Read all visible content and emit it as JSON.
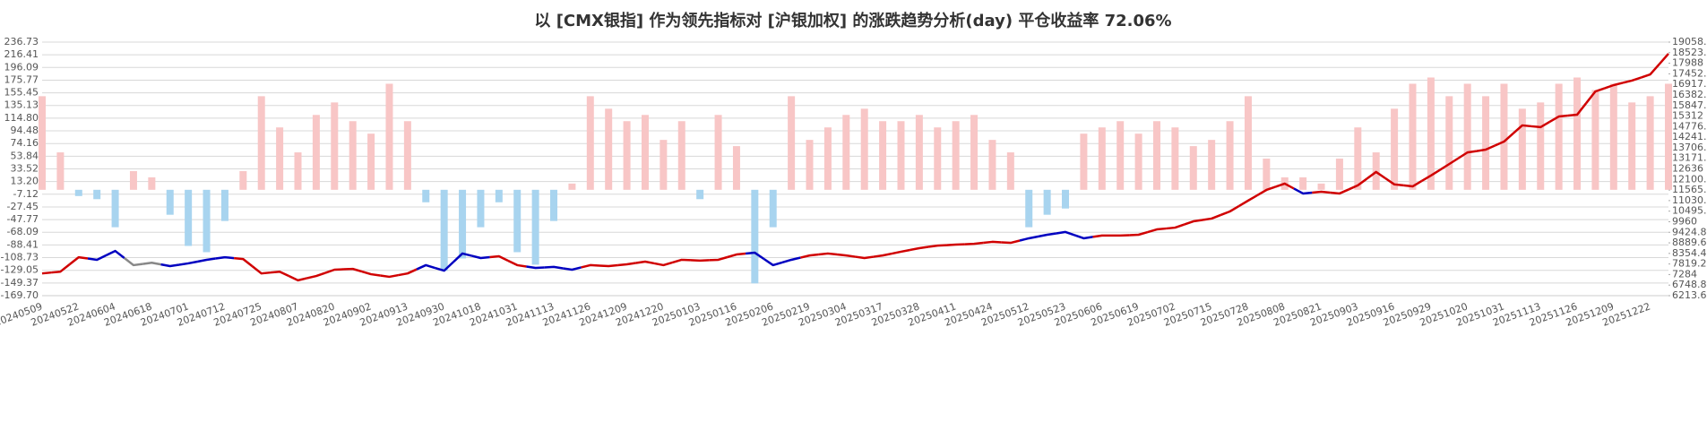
{
  "chart_data": {
    "type": "combo",
    "title": "以 [CMX银指] 作为领先指标对 [沪银加权] 的涨跌趋势分析(day) 平仓收益率 72.06%",
    "categories": [
      "20240509",
      null,
      "20240522",
      null,
      "20240604",
      null,
      "20240618",
      null,
      "20240701",
      null,
      "20240712",
      null,
      "20240725",
      null,
      "20240807",
      null,
      "20240820",
      null,
      "20240902",
      null,
      "20240913",
      null,
      "20240930",
      null,
      "20241018",
      null,
      "20241031",
      null,
      "20241113",
      null,
      "20241126",
      null,
      "20241209",
      null,
      "20241220",
      null,
      "20250103",
      null,
      "20250116",
      null,
      "20250206",
      null,
      "20250219",
      null,
      "20250304",
      null,
      "20250317",
      null,
      "20250328",
      null,
      "20250411",
      null,
      "20250424",
      null,
      "20250512",
      null,
      "20250523",
      null,
      "20250606",
      null,
      "20250619",
      null,
      "20250702",
      null,
      "20250715",
      null,
      "20250728",
      null,
      "20250808",
      null,
      "20250821",
      null,
      "20250903",
      null,
      "20250916",
      null,
      "20250929",
      null,
      "20251020",
      null,
      "20251031",
      null,
      "20251113",
      null,
      "20251126",
      null,
      "20251209",
      null,
      "20251222",
      null
    ],
    "series": [
      {
        "type": "bar",
        "positive_color": "#f8c6c6",
        "negative_color": "#a8d4ef",
        "values": [
          150,
          60,
          -10,
          -15,
          -60,
          30,
          20,
          -40,
          -90,
          -100,
          -50,
          30,
          150,
          100,
          60,
          120,
          140,
          110,
          90,
          170,
          110,
          -20,
          -130,
          -110,
          -60,
          -20,
          -100,
          -120,
          -50,
          10,
          150,
          130,
          110,
          120,
          80,
          110,
          -15,
          120,
          70,
          -150,
          -60,
          150,
          80,
          100,
          120,
          130,
          110,
          110,
          120,
          100,
          110,
          120,
          80,
          60,
          -60,
          -40,
          -30,
          90,
          100,
          110,
          90,
          110,
          100,
          70,
          80,
          110,
          150,
          50,
          20,
          20,
          10,
          50,
          100,
          60,
          130,
          170,
          180,
          150,
          170,
          150,
          170,
          130,
          140,
          170,
          180,
          160,
          170,
          140,
          150,
          170
        ]
      },
      {
        "type": "line",
        "axis": "y2",
        "values": [
          7340,
          7430,
          8160,
          8030,
          8480,
          7760,
          7880,
          7710,
          7850,
          8030,
          8160,
          8070,
          7340,
          7430,
          6990,
          7210,
          7530,
          7570,
          7300,
          7170,
          7340,
          7760,
          7480,
          8350,
          8120,
          8210,
          7760,
          7620,
          7670,
          7530,
          7760,
          7710,
          7800,
          7940,
          7760,
          8030,
          7990,
          8030,
          8300,
          8390,
          7760,
          8030,
          8250,
          8350,
          8250,
          8120,
          8250,
          8440,
          8620,
          8750,
          8800,
          8840,
          8940,
          8890,
          9120,
          9300,
          9440,
          9120,
          9260,
          9260,
          9300,
          9570,
          9660,
          9980,
          10120,
          10480,
          11030,
          11570,
          11890,
          11390,
          11480,
          11390,
          11800,
          12480,
          11850,
          11750,
          12300,
          12880,
          13470,
          13610,
          14020,
          14840,
          14750,
          15290,
          15380,
          16560,
          16880,
          17110,
          17420,
          18470
        ],
        "colors": [
          "#d00000",
          "#d00000",
          "#d00000",
          "#0000c0",
          "#0000c0",
          "#888888",
          "#888888",
          "#0000c0",
          "#0000c0",
          "#0000c0",
          "#0000c0",
          "#d00000",
          "#d00000",
          "#d00000",
          "#d00000",
          "#d00000",
          "#d00000",
          "#d00000",
          "#d00000",
          "#d00000",
          "#d00000",
          "#0000c0",
          "#0000c0",
          "#0000c0",
          "#0000c0",
          "#d00000",
          "#d00000",
          "#0000c0",
          "#0000c0",
          "#0000c0",
          "#d00000",
          "#d00000",
          "#d00000",
          "#d00000",
          "#d00000",
          "#d00000",
          "#d00000",
          "#d00000",
          "#d00000",
          "#0000c0",
          "#0000c0",
          "#0000c0",
          "#d00000",
          "#d00000",
          "#d00000",
          "#d00000",
          "#d00000",
          "#d00000",
          "#d00000",
          "#d00000",
          "#d00000",
          "#d00000",
          "#d00000",
          "#d00000",
          "#0000c0",
          "#0000c0",
          "#0000c0",
          "#0000c0",
          "#d00000",
          "#d00000",
          "#d00000",
          "#d00000",
          "#d00000",
          "#d00000",
          "#d00000",
          "#d00000",
          "#d00000",
          "#d00000",
          "#d00000",
          "#0000c0",
          "#d00000",
          "#d00000",
          "#d00000",
          "#d00000",
          "#d00000",
          "#d00000",
          "#d00000",
          "#d00000",
          "#d00000",
          "#d00000",
          "#d00000",
          "#d00000",
          "#d00000",
          "#d00000",
          "#d00000",
          "#d00000",
          "#d00000",
          "#d00000",
          "#d00000",
          "#d00000"
        ]
      }
    ],
    "ylim": [
      -169.7,
      236.73
    ],
    "yticks": [
      236.73,
      216.41,
      196.09,
      175.77,
      155.45,
      135.13,
      {
        "value": 114.8,
        "label": "114.80"
      },
      94.48,
      74.16,
      53.84,
      33.52,
      {
        "value": 13.2,
        "label": "13.20"
      },
      -7.12,
      -27.45,
      -47.77,
      -68.09,
      -88.41,
      -108.73,
      -129.05,
      -149.37,
      {
        "value": -169.7,
        "label": "-169.70"
      }
    ],
    "y2lim": [
      6213.6,
      19058.4
    ],
    "y2ticks": [
      19058.4,
      18523.2,
      17988,
      17452.8,
      16917.6,
      16382.4,
      15847.2,
      15312,
      14776.8,
      14241.6,
      13706.4,
      13171.2,
      12636,
      12100.8,
      11565.6,
      11030.4,
      10495.2,
      9960,
      9424.8,
      8889.6,
      8354.4,
      7819.2,
      7284,
      6748.8,
      6213.6
    ],
    "grid": true
  }
}
